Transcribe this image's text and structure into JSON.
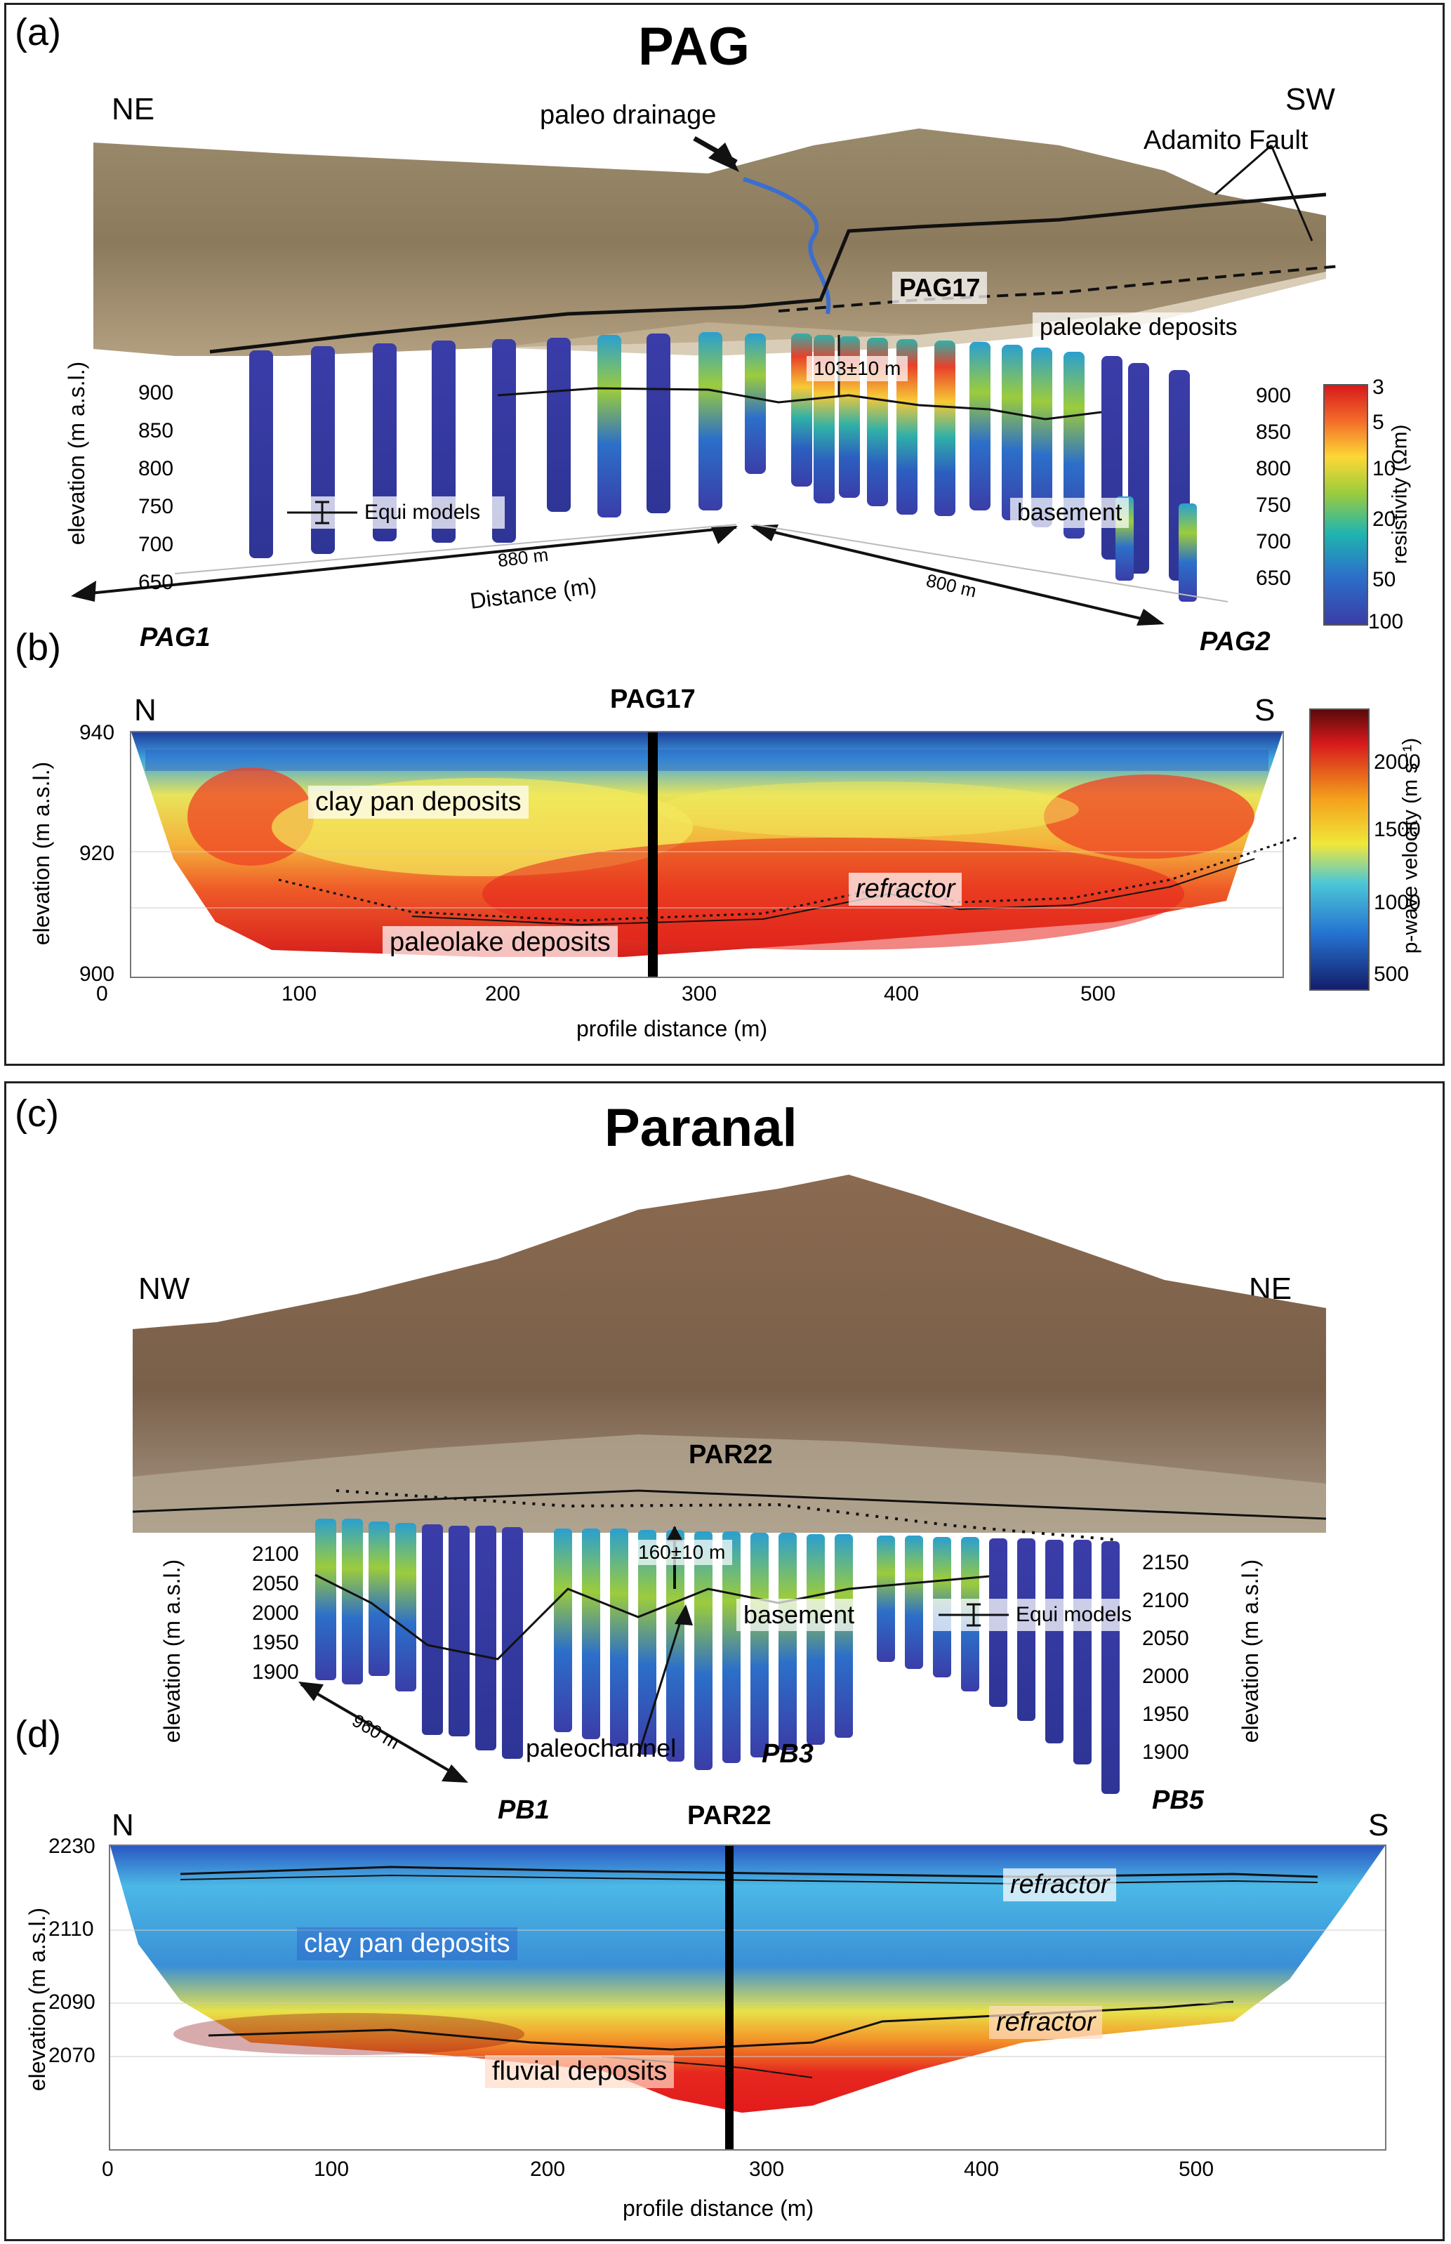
{
  "panel_ab": {
    "label_a": "(a)",
    "label_b": "(b)",
    "title": "PAG",
    "dir_left": "NE",
    "dir_right": "SW",
    "ann_drainage": "paleo drainage",
    "ann_fault": "Adamito Fault",
    "ann_site": "PAG17",
    "ann_paleolake": "paleolake deposits",
    "ann_depth": "103±10 m",
    "ann_basement": "basement",
    "legend_equi": "Equi models",
    "dist_left": "880 m",
    "dist_right": "800 m",
    "dist_axis": "Distance (m)",
    "profile_left": "PAG1",
    "profile_right": "PAG2",
    "elev_axis": "elevation (m a.s.l.)",
    "elev_ticks_left": [
      "900",
      "850",
      "800",
      "750",
      "700",
      "650"
    ],
    "elev_ticks_right": [
      "900",
      "850",
      "800",
      "750",
      "700",
      "650"
    ],
    "res_colorbar": {
      "label": "resistivity (Ωm)",
      "ticks": [
        "3",
        "5",
        "10",
        "20",
        "50",
        "100"
      ]
    }
  },
  "panel_b": {
    "dir_left": "N",
    "dir_right": "S",
    "site": "PAG17",
    "ann_claypan": "clay pan deposits",
    "ann_refractor": "refractor",
    "ann_paleolake": "paleolake deposits",
    "ylabel": "elevation (m a.s.l.)",
    "yticks": [
      "940",
      "920",
      "900"
    ],
    "xticks": [
      "0",
      "100",
      "200",
      "300",
      "400",
      "500"
    ],
    "xlabel": "profile distance (m)",
    "vel_colorbar": {
      "label": "p-wave velocity (m s⁻¹)",
      "ticks": [
        "2000",
        "1500",
        "1000",
        "500"
      ]
    }
  },
  "panel_cd": {
    "label_c": "(c)",
    "label_d": "(d)",
    "title": "Paranal",
    "dir_left": "NW",
    "dir_right": "NE",
    "ann_site": "PAR22",
    "ann_depth": "160±10 m",
    "ann_basement": "basement",
    "ann_paleochannel": "paleochannel",
    "legend_equi": "Equi models",
    "dist_left": "960 m",
    "profile_1": "PB1",
    "profile_3": "PB3",
    "profile_5": "PB5",
    "elev_axis": "elevation (m a.s.l.)",
    "elev_ticks_left": [
      "2100",
      "2050",
      "2000",
      "1950",
      "1900"
    ],
    "elev_ticks_right": [
      "2150",
      "2100",
      "2050",
      "2000",
      "1950",
      "1900"
    ]
  },
  "panel_d": {
    "dir_left": "N",
    "dir_right": "S",
    "site": "PAR22",
    "ann_claypan": "clay pan deposits",
    "ann_refractor_top": "refractor",
    "ann_refractor_bottom": "refractor",
    "ann_fluvial": "fluvial deposits",
    "ylabel": "elevation (m a.s.l.)",
    "yticks": [
      "2230",
      "2110",
      "2090",
      "2070"
    ],
    "xticks": [
      "0",
      "100",
      "200",
      "300",
      "400",
      "500"
    ],
    "xlabel": "profile distance (m)"
  }
}
